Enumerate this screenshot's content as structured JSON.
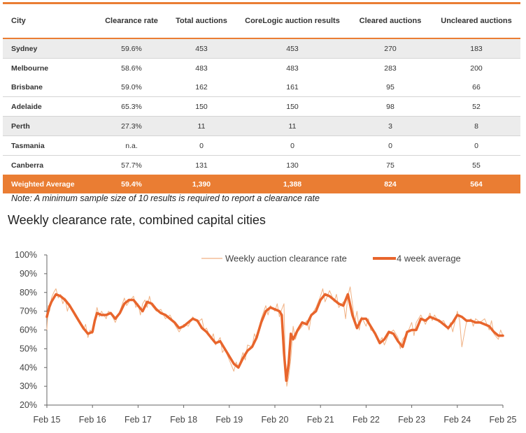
{
  "table": {
    "headers": [
      "City",
      "Clearance  rate",
      "Total  auctions",
      "CoreLogic  auction results",
      "Cleared auctions",
      "Uncleared auctions"
    ],
    "rows": [
      [
        "Sydney",
        "59.6%",
        "453",
        "453",
        "270",
        "183"
      ],
      [
        "Melbourne",
        "58.6%",
        "483",
        "483",
        "283",
        "200"
      ],
      [
        "Brisbane",
        "59.0%",
        "162",
        "161",
        "95",
        "66"
      ],
      [
        "Adelaide",
        "65.3%",
        "150",
        "150",
        "98",
        "52"
      ],
      [
        "Perth",
        "27.3%",
        "11",
        "11",
        "3",
        "8"
      ],
      [
        "Tasmania",
        "n.a.",
        "0",
        "0",
        "0",
        "0"
      ],
      [
        "Canberra",
        "57.7%",
        "131",
        "130",
        "75",
        "55"
      ]
    ],
    "average": [
      "Weighted Average",
      "59.4%",
      "1,390",
      "1,388",
      "824",
      "564"
    ]
  },
  "note": "Note: A minimum sample size of 10 results is required to report a clearance rate",
  "chart_title": "Weekly clearance rate, combined capital cities",
  "colors": {
    "accent": "#ea7d33",
    "weekly": "#f0b183",
    "average": "#e8652c",
    "alt_row": "#ececec"
  },
  "chart_data": {
    "type": "line",
    "title": "Weekly clearance rate, combined capital cities",
    "xlabel": "",
    "ylabel": "",
    "ylim": [
      20,
      100
    ],
    "xlim": [
      2015,
      2025
    ],
    "yticks": [
      "20%",
      "30%",
      "40%",
      "50%",
      "60%",
      "70%",
      "80%",
      "90%",
      "100%"
    ],
    "xticks": [
      "Feb 15",
      "Feb 16",
      "Feb 17",
      "Feb 18",
      "Feb 19",
      "Feb 20",
      "Feb 21",
      "Feb 22",
      "Feb 23",
      "Feb 24",
      "Feb 25"
    ],
    "legend": [
      "Weekly auction clearance rate",
      "4 week average"
    ],
    "legend_position": "top-right",
    "series": [
      {
        "name": "4 week average",
        "x": [
          2015.0,
          2015.05,
          2015.1,
          2015.2,
          2015.3,
          2015.4,
          2015.5,
          2015.6,
          2015.7,
          2015.8,
          2015.9,
          2016.0,
          2016.05,
          2016.1,
          2016.2,
          2016.3,
          2016.4,
          2016.5,
          2016.6,
          2016.7,
          2016.8,
          2016.9,
          2017.0,
          2017.1,
          2017.2,
          2017.3,
          2017.4,
          2017.5,
          2017.6,
          2017.7,
          2017.8,
          2017.9,
          2018.0,
          2018.1,
          2018.2,
          2018.3,
          2018.4,
          2018.5,
          2018.6,
          2018.7,
          2018.8,
          2018.9,
          2019.0,
          2019.1,
          2019.2,
          2019.3,
          2019.4,
          2019.5,
          2019.6,
          2019.7,
          2019.8,
          2019.9,
          2020.0,
          2020.1,
          2020.15,
          2020.2,
          2020.25,
          2020.3,
          2020.35,
          2020.4,
          2020.5,
          2020.6,
          2020.7,
          2020.8,
          2020.9,
          2021.0,
          2021.1,
          2021.2,
          2021.3,
          2021.4,
          2021.5,
          2021.6,
          2021.7,
          2021.8,
          2021.9,
          2022.0,
          2022.1,
          2022.2,
          2022.3,
          2022.4,
          2022.5,
          2022.6,
          2022.7,
          2022.8,
          2022.9,
          2023.0,
          2023.1,
          2023.2,
          2023.3,
          2023.4,
          2023.5,
          2023.6,
          2023.7,
          2023.8,
          2023.9,
          2024.0,
          2024.1,
          2024.2,
          2024.3,
          2024.4,
          2024.5,
          2024.6,
          2024.7,
          2024.8,
          2024.9,
          2025.0
        ],
        "values": [
          67,
          72,
          75,
          79,
          78,
          76,
          73,
          69,
          65,
          61,
          58,
          59,
          65,
          69,
          68,
          68,
          69,
          66,
          69,
          74,
          76,
          76,
          73,
          70,
          75,
          74,
          71,
          69,
          68,
          66,
          64,
          61,
          62,
          64,
          66,
          65,
          61,
          59,
          56,
          53,
          54,
          50,
          46,
          42,
          40,
          45,
          49,
          51,
          56,
          64,
          70,
          72,
          71,
          70,
          68,
          48,
          33,
          42,
          58,
          55,
          60,
          64,
          63,
          68,
          70,
          76,
          79,
          78,
          76,
          74,
          73,
          79,
          68,
          61,
          66,
          66,
          62,
          58,
          53,
          55,
          59,
          58,
          54,
          51,
          59,
          60,
          60,
          66,
          65,
          67,
          66,
          65,
          63,
          61,
          64,
          68,
          67,
          65,
          65,
          64,
          64,
          63,
          62,
          59,
          57,
          57
        ]
      },
      {
        "name": "Weekly auction clearance rate",
        "x": [
          2015.0,
          2015.03,
          2015.06,
          2015.1,
          2015.15,
          2015.2,
          2015.25,
          2015.3,
          2015.35,
          2015.4,
          2015.45,
          2015.5,
          2015.6,
          2015.7,
          2015.8,
          2015.85,
          2015.9,
          2015.95,
          2016.0,
          2016.05,
          2016.1,
          2016.15,
          2016.2,
          2016.3,
          2016.35,
          2016.4,
          2016.5,
          2016.6,
          2016.7,
          2016.75,
          2016.8,
          2016.9,
          2016.95,
          2017.0,
          2017.05,
          2017.1,
          2017.15,
          2017.2,
          2017.25,
          2017.3,
          2017.4,
          2017.5,
          2017.6,
          2017.7,
          2017.8,
          2017.9,
          2018.0,
          2018.1,
          2018.2,
          2018.3,
          2018.4,
          2018.45,
          2018.5,
          2018.6,
          2018.65,
          2018.7,
          2018.8,
          2018.85,
          2018.9,
          2019.0,
          2019.1,
          2019.15,
          2019.2,
          2019.3,
          2019.35,
          2019.4,
          2019.5,
          2019.55,
          2019.6,
          2019.7,
          2019.8,
          2019.85,
          2019.9,
          2020.0,
          2020.05,
          2020.1,
          2020.15,
          2020.2,
          2020.23,
          2020.26,
          2020.3,
          2020.35,
          2020.4,
          2020.45,
          2020.5,
          2020.6,
          2020.7,
          2020.75,
          2020.8,
          2020.9,
          2021.0,
          2021.05,
          2021.1,
          2021.2,
          2021.3,
          2021.35,
          2021.4,
          2021.5,
          2021.55,
          2021.6,
          2021.65,
          2021.7,
          2021.75,
          2021.8,
          2021.85,
          2021.9,
          2022.0,
          2022.05,
          2022.1,
          2022.2,
          2022.3,
          2022.35,
          2022.4,
          2022.5,
          2022.6,
          2022.7,
          2022.75,
          2022.8,
          2022.9,
          2023.0,
          2023.05,
          2023.1,
          2023.2,
          2023.3,
          2023.4,
          2023.45,
          2023.5,
          2023.6,
          2023.7,
          2023.8,
          2023.85,
          2023.9,
          2024.0,
          2024.05,
          2024.1,
          2024.2,
          2024.3,
          2024.35,
          2024.4,
          2024.5,
          2024.6,
          2024.7,
          2024.75,
          2024.8,
          2024.9,
          2024.95,
          2025.0
        ],
        "values": [
          60,
          73,
          70,
          77,
          80,
          82,
          77,
          79,
          74,
          77,
          70,
          74,
          68,
          64,
          60,
          63,
          56,
          60,
          58,
          66,
          72,
          67,
          70,
          66,
          70,
          69,
          64,
          70,
          77,
          73,
          75,
          78,
          72,
          74,
          68,
          74,
          76,
          72,
          78,
          73,
          70,
          71,
          66,
          68,
          63,
          59,
          63,
          62,
          67,
          64,
          66,
          60,
          61,
          55,
          58,
          52,
          56,
          48,
          50,
          44,
          38,
          43,
          40,
          48,
          44,
          52,
          51,
          58,
          55,
          66,
          73,
          68,
          73,
          70,
          74,
          67,
          71,
          74,
          41,
          30,
          35,
          45,
          62,
          55,
          59,
          62,
          65,
          60,
          68,
          72,
          78,
          82,
          75,
          81,
          75,
          79,
          72,
          75,
          66,
          78,
          83,
          74,
          64,
          70,
          60,
          67,
          62,
          66,
          60,
          59,
          54,
          56,
          52,
          58,
          60,
          56,
          50,
          55,
          58,
          64,
          57,
          64,
          68,
          63,
          69,
          65,
          68,
          64,
          65,
          60,
          64,
          59,
          70,
          65,
          51,
          64,
          66,
          62,
          66,
          64,
          66,
          60,
          65,
          58,
          55,
          60,
          57
        ]
      }
    ]
  }
}
